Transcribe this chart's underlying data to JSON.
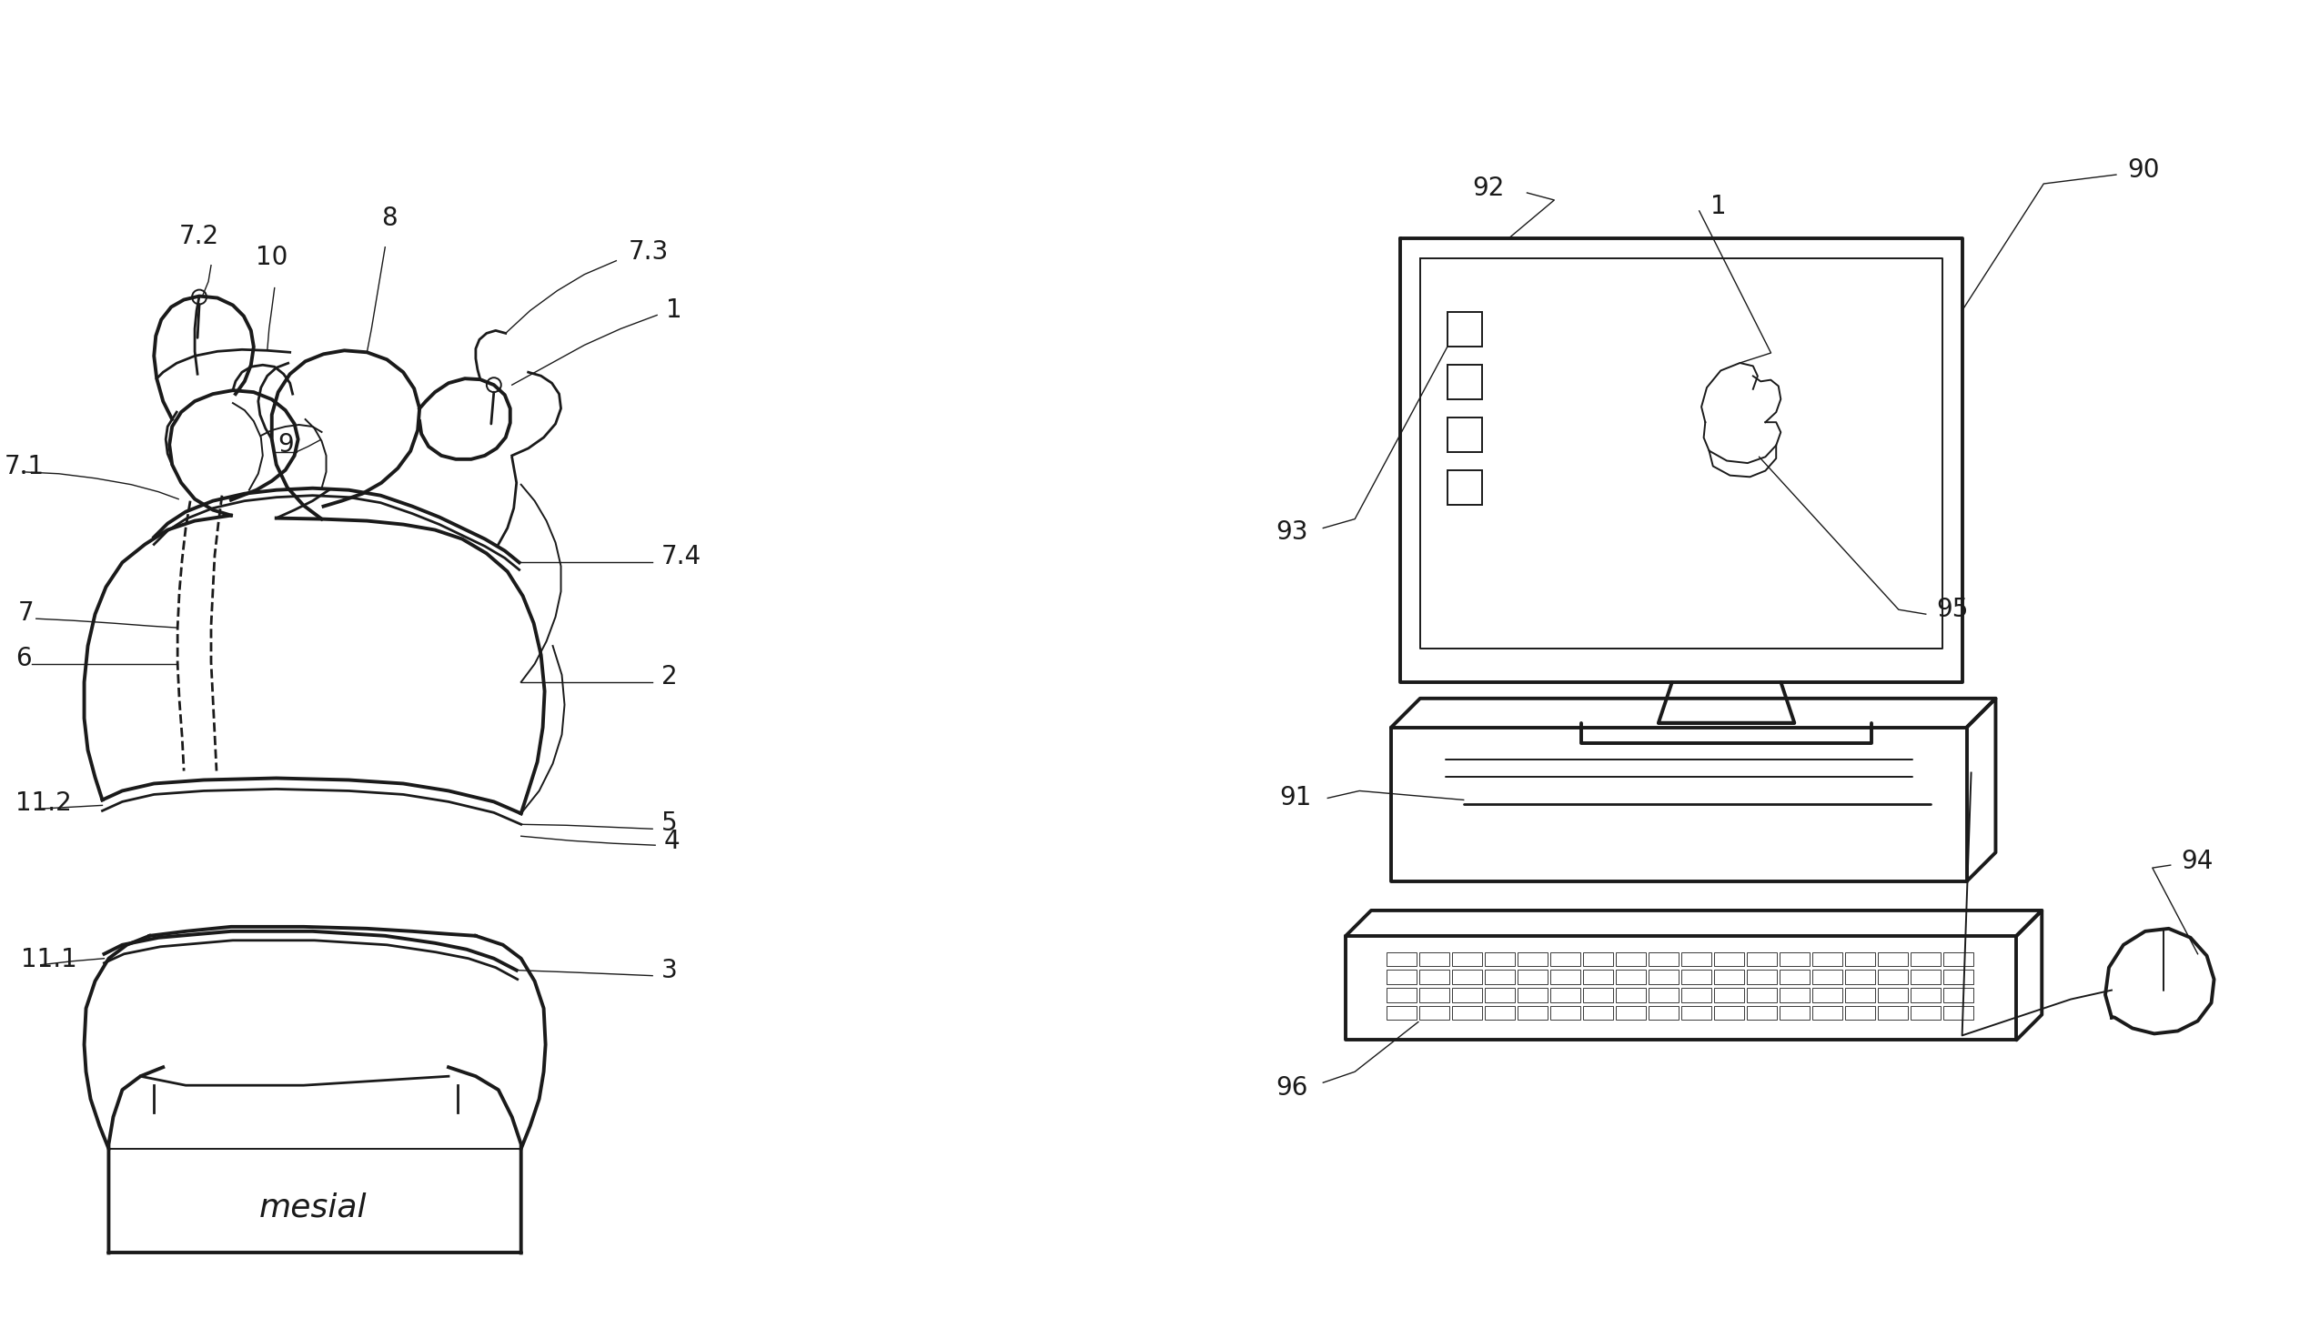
{
  "background_color": "#ffffff",
  "line_color": "#1a1a1a",
  "fig_width": 25.5,
  "fig_height": 14.49
}
